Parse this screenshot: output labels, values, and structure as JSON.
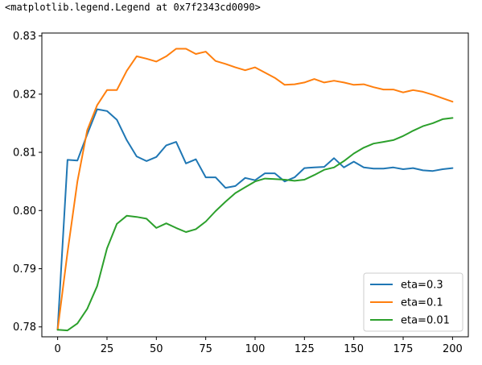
{
  "output_text": "<matplotlib.legend.Legend at 0x7f2343cd0090>",
  "chart_data": {
    "type": "line",
    "title": "",
    "xlabel": "",
    "ylabel": "",
    "xlim": [
      -8,
      208
    ],
    "ylim": [
      0.7783,
      0.8305
    ],
    "xticks": [
      0,
      25,
      50,
      75,
      100,
      125,
      150,
      175,
      200
    ],
    "xtick_labels": [
      "0",
      "25",
      "50",
      "75",
      "100",
      "125",
      "150",
      "175",
      "200"
    ],
    "yticks": [
      0.78,
      0.79,
      0.8,
      0.81,
      0.82,
      0.83
    ],
    "ytick_labels": [
      "0.78",
      "0.79",
      "0.80",
      "0.81",
      "0.82",
      "0.83"
    ],
    "grid": false,
    "legend_position": "lower-right",
    "x": [
      0,
      5,
      10,
      15,
      20,
      25,
      30,
      35,
      40,
      45,
      50,
      55,
      60,
      65,
      70,
      75,
      80,
      85,
      90,
      95,
      100,
      105,
      110,
      115,
      120,
      125,
      130,
      135,
      140,
      145,
      150,
      155,
      160,
      165,
      170,
      175,
      180,
      185,
      190,
      195,
      200
    ],
    "series": [
      {
        "name": "eta=0.3",
        "color": "#1f77b4",
        "values": [
          0.7795,
          0.8087,
          0.8086,
          0.8131,
          0.8174,
          0.8171,
          0.8156,
          0.8121,
          0.8093,
          0.8085,
          0.8092,
          0.8112,
          0.8118,
          0.8081,
          0.8088,
          0.8057,
          0.8057,
          0.8039,
          0.8042,
          0.8056,
          0.8052,
          0.8064,
          0.8064,
          0.805,
          0.8057,
          0.8073,
          0.8074,
          0.8075,
          0.809,
          0.8074,
          0.8084,
          0.8074,
          0.8072,
          0.8072,
          0.8074,
          0.8071,
          0.8073,
          0.8069,
          0.8068,
          0.8071,
          0.8073
        ]
      },
      {
        "name": "eta=0.1",
        "color": "#ff7f0e",
        "values": [
          0.7795,
          0.7928,
          0.805,
          0.8138,
          0.8181,
          0.8207,
          0.8207,
          0.824,
          0.8265,
          0.8261,
          0.8256,
          0.8265,
          0.8278,
          0.8278,
          0.8269,
          0.8273,
          0.8257,
          0.8252,
          0.8246,
          0.8241,
          0.8246,
          0.8237,
          0.8228,
          0.8216,
          0.8217,
          0.822,
          0.8226,
          0.822,
          0.8223,
          0.822,
          0.8216,
          0.8217,
          0.8212,
          0.8208,
          0.8208,
          0.8203,
          0.8207,
          0.8204,
          0.8199,
          0.8193,
          0.8187
        ]
      },
      {
        "name": "eta=0.01",
        "color": "#2ca02c",
        "values": [
          0.7795,
          0.7794,
          0.7806,
          0.7831,
          0.787,
          0.7935,
          0.7977,
          0.7991,
          0.7989,
          0.7986,
          0.797,
          0.7978,
          0.797,
          0.7963,
          0.7968,
          0.7981,
          0.7999,
          0.8015,
          0.803,
          0.804,
          0.805,
          0.8055,
          0.8054,
          0.8053,
          0.8051,
          0.8053,
          0.8061,
          0.807,
          0.8074,
          0.8085,
          0.8098,
          0.8108,
          0.8115,
          0.8118,
          0.8121,
          0.8128,
          0.8137,
          0.8145,
          0.815,
          0.8157,
          0.8159
        ]
      }
    ]
  }
}
